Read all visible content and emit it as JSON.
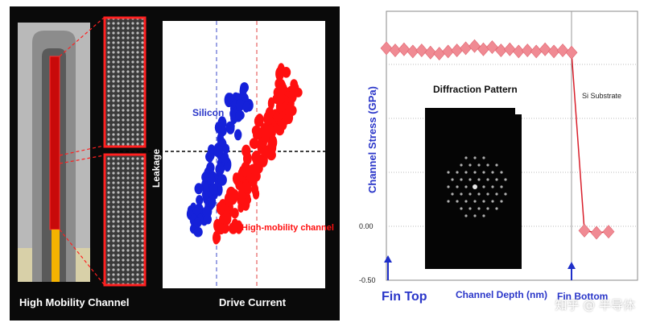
{
  "left_panel": {
    "device_caption": "High Mobility Channel",
    "plot": {
      "xlabel": "Drive Current",
      "ylabel": "Leakage",
      "series": [
        {
          "name": "Silicon",
          "color": "#1521d9"
        },
        {
          "name": "High-mobility channel",
          "color": "#ff1010"
        }
      ]
    }
  },
  "right_panel": {
    "chart_data": {
      "type": "line",
      "ylabel": "Channel Stress (GPa)",
      "xlabel": "Channel Depth (nm)",
      "x_start_label": "Fin Top",
      "x_end_label": "Fin Bottom",
      "region_label": "Si Substrate",
      "y_tick_labels": [
        "0.00",
        "-0.50"
      ],
      "ylim": [
        -0.5,
        1.65
      ],
      "series": [
        {
          "values": [
            1.65,
            1.63,
            1.64,
            1.62,
            1.63,
            1.61,
            1.6,
            1.62,
            1.63,
            1.65,
            1.67,
            1.64,
            1.66,
            1.63,
            1.64,
            1.62,
            1.63,
            1.62,
            1.64,
            1.62,
            1.63,
            1.61
          ]
        },
        {
          "values": [
            -0.04,
            -0.06,
            -0.05
          ]
        }
      ],
      "marker_color": "#f08a93",
      "line_color": "#d81e2a"
    },
    "inset": {
      "title": "Diffraction Pattern"
    }
  },
  "watermark": "知乎 @ 半导体"
}
